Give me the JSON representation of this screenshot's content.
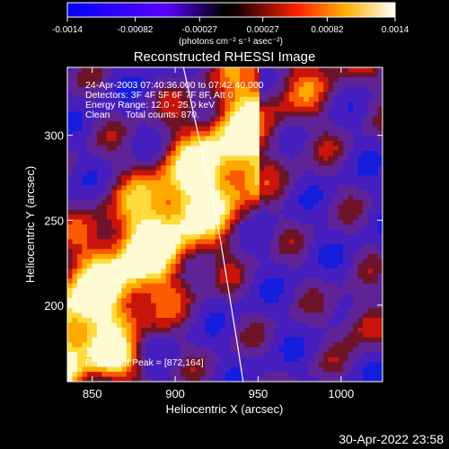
{
  "colorbar": {
    "tick_labels": [
      "-0.0014",
      "-0.00082",
      "-0.00027",
      "0.00027",
      "0.00082",
      "0.0014"
    ],
    "range": [
      -0.0014,
      0.0014
    ],
    "units": "(photons cm⁻² s⁻¹ asec⁻²)"
  },
  "chart_data": {
    "type": "heatmap",
    "title": "Reconstructed RHESSI Image",
    "xlabel": "Heliocentric X (arcsec)",
    "ylabel": "Heliocentric Y (arcsec)",
    "xlim": [
      835,
      1025
    ],
    "ylim": [
      155,
      340
    ],
    "x_ticks": [
      850,
      900,
      950,
      1000
    ],
    "y_ticks": [
      200,
      250,
      300
    ],
    "limb_curve_xy": [
      [
        905,
        340
      ],
      [
        914,
        300
      ],
      [
        921,
        270
      ],
      [
        927,
        240
      ],
      [
        932,
        210
      ],
      [
        937,
        180
      ],
      [
        941,
        155
      ]
    ],
    "peak_position": [
      872,
      164
    ]
  },
  "annotations": {
    "time_range": "24-Apr-2003 07:40:36.000 to 07:42:40.000",
    "detectors": "Detectors: 3F 4F 5F 6F 7F 8F, Att 0",
    "energy": "Energy Range: 12.0 - 25.0 keV",
    "clean": "Clean      Total counts: 870.",
    "peak": "Position of Peak = [872,164]"
  },
  "timestamp": "30-Apr-2022 23:58",
  "colors": {
    "text": "#ffffff",
    "background": "#000000",
    "limb": "#ffffff"
  }
}
